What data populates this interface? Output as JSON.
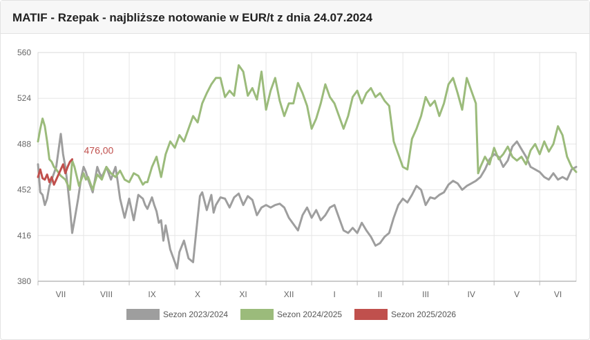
{
  "title": "MATIF - Rzepak - najbliższe notowanie w EUR/t z dnia 24.07.2024",
  "chart_data": {
    "type": "line",
    "title": "MATIF - Rzepak - najbliższe notowanie w EUR/t z dnia 24.07.2024",
    "xlabel": "",
    "ylabel": "",
    "ylim": [
      380,
      560
    ],
    "yticks": [
      380,
      416,
      452,
      488,
      524,
      560
    ],
    "months": [
      "VII",
      "VIII",
      "IX",
      "X",
      "XI",
      "XII",
      "I",
      "II",
      "III",
      "IV",
      "V",
      "VI"
    ],
    "x_unit": "month index (0 = start of VII, 12 = end of VI)",
    "xlim": [
      0,
      11.8
    ],
    "grid": true,
    "legend_position": "bottom",
    "annotation": {
      "text": "476,00",
      "x": 0.75,
      "y": 476
    },
    "series": [
      {
        "name": "Sezon 2023/2024",
        "color": "#9e9e9e",
        "x": [
          0,
          0.05,
          0.1,
          0.15,
          0.2,
          0.25,
          0.3,
          0.35,
          0.4,
          0.5,
          0.55,
          0.6,
          0.65,
          0.7,
          0.75,
          0.8,
          0.88,
          0.95,
          1.0,
          1.05,
          1.1,
          1.15,
          1.2,
          1.3,
          1.35,
          1.4,
          1.5,
          1.55,
          1.6,
          1.7,
          1.75,
          1.8,
          1.9,
          2.0,
          2.1,
          2.2,
          2.3,
          2.35,
          2.4,
          2.5,
          2.55,
          2.6,
          2.65,
          2.7,
          2.75,
          2.8,
          2.9,
          3.0,
          3.05,
          3.1,
          3.2,
          3.3,
          3.4,
          3.5,
          3.55,
          3.6,
          3.7,
          3.8,
          3.85,
          3.9,
          4.0,
          4.1,
          4.2,
          4.3,
          4.4,
          4.5,
          4.6,
          4.7,
          4.8,
          4.9,
          5.0,
          5.1,
          5.2,
          5.3,
          5.4,
          5.5,
          5.6,
          5.7,
          5.8,
          5.9,
          6.0,
          6.1,
          6.2,
          6.3,
          6.4,
          6.5,
          6.6,
          6.7,
          6.8,
          6.9,
          7.0,
          7.1,
          7.2,
          7.3,
          7.4,
          7.5,
          7.6,
          7.7,
          7.8,
          7.9,
          8.0,
          8.1,
          8.2,
          8.3,
          8.4,
          8.5,
          8.6,
          8.7,
          8.8,
          8.9,
          9.0,
          9.1,
          9.2,
          9.3,
          9.4,
          9.5,
          9.6,
          9.7,
          9.8,
          9.9,
          10.0,
          10.1,
          10.2,
          10.3,
          10.4,
          10.5,
          10.6,
          10.7,
          10.8,
          10.9,
          11.0,
          11.1,
          11.2,
          11.3,
          11.4,
          11.5,
          11.6,
          11.7,
          11.8
        ],
        "y": [
          472,
          450,
          448,
          440,
          445,
          455,
          460,
          465,
          470,
          496,
          480,
          470,
          455,
          438,
          418,
          428,
          445,
          462,
          470,
          466,
          460,
          455,
          450,
          470,
          465,
          462,
          470,
          465,
          460,
          470,
          458,
          445,
          430,
          445,
          428,
          448,
          445,
          440,
          437,
          446,
          440,
          435,
          426,
          428,
          412,
          424,
          405,
          395,
          390,
          403,
          412,
          398,
          395,
          430,
          447,
          450,
          436,
          448,
          434,
          440,
          446,
          445,
          438,
          446,
          449,
          440,
          447,
          444,
          432,
          438,
          440,
          438,
          440,
          441,
          438,
          430,
          425,
          420,
          432,
          438,
          430,
          436,
          428,
          432,
          438,
          440,
          430,
          420,
          418,
          422,
          418,
          426,
          420,
          415,
          408,
          410,
          415,
          418,
          430,
          440,
          445,
          442,
          448,
          455,
          452,
          440,
          446,
          445,
          448,
          450,
          456,
          459,
          457,
          452,
          455,
          457,
          459,
          462,
          468,
          476,
          480,
          478,
          470,
          475,
          486,
          490,
          484,
          478,
          470,
          468,
          466,
          462,
          460,
          465,
          460,
          462,
          460,
          468,
          470
        ]
      },
      {
        "name": "Sezon 2024/2025",
        "color": "#9bbb7b",
        "x": [
          0,
          0.05,
          0.1,
          0.15,
          0.2,
          0.25,
          0.3,
          0.35,
          0.4,
          0.5,
          0.6,
          0.65,
          0.7,
          0.75,
          0.8,
          0.9,
          1.0,
          1.05,
          1.1,
          1.2,
          1.3,
          1.4,
          1.5,
          1.6,
          1.7,
          1.8,
          1.9,
          2.0,
          2.1,
          2.2,
          2.3,
          2.35,
          2.4,
          2.5,
          2.6,
          2.7,
          2.8,
          2.9,
          3.0,
          3.1,
          3.2,
          3.3,
          3.4,
          3.5,
          3.6,
          3.7,
          3.8,
          3.9,
          4.0,
          4.1,
          4.2,
          4.3,
          4.4,
          4.5,
          4.6,
          4.7,
          4.8,
          4.9,
          5.0,
          5.1,
          5.2,
          5.3,
          5.4,
          5.5,
          5.6,
          5.7,
          5.8,
          5.9,
          6.0,
          6.1,
          6.2,
          6.3,
          6.4,
          6.5,
          6.6,
          6.7,
          6.8,
          6.9,
          7.0,
          7.1,
          7.2,
          7.3,
          7.4,
          7.5,
          7.6,
          7.7,
          7.8,
          7.9,
          8.0,
          8.1,
          8.2,
          8.3,
          8.4,
          8.5,
          8.6,
          8.7,
          8.8,
          8.9,
          9.0,
          9.1,
          9.2,
          9.3,
          9.4,
          9.5,
          9.6,
          9.65,
          9.7,
          9.8,
          9.9,
          10.0,
          10.1,
          10.2,
          10.3,
          10.4,
          10.5,
          10.6,
          10.7,
          10.8,
          10.9,
          11.0,
          11.1,
          11.2,
          11.3,
          11.4,
          11.5,
          11.6,
          11.7,
          11.8
        ],
        "y": [
          490,
          500,
          508,
          502,
          490,
          476,
          474,
          470,
          468,
          463,
          460,
          456,
          452,
          475,
          470,
          455,
          465,
          460,
          462,
          452,
          464,
          460,
          470,
          465,
          462,
          467,
          460,
          458,
          465,
          463,
          456,
          458,
          458,
          470,
          478,
          462,
          480,
          490,
          485,
          495,
          490,
          500,
          510,
          505,
          520,
          528,
          535,
          540,
          540,
          525,
          530,
          526,
          550,
          545,
          526,
          532,
          523,
          545,
          515,
          530,
          540,
          522,
          510,
          520,
          520,
          536,
          528,
          518,
          500,
          508,
          520,
          535,
          525,
          520,
          510,
          500,
          510,
          525,
          530,
          520,
          528,
          532,
          525,
          528,
          522,
          518,
          490,
          480,
          470,
          468,
          492,
          500,
          510,
          525,
          518,
          522,
          510,
          520,
          535,
          540,
          528,
          515,
          540,
          530,
          520,
          465,
          470,
          478,
          472,
          485,
          476,
          480,
          486,
          478,
          475,
          478,
          472,
          483,
          488,
          480,
          490,
          482,
          488,
          502,
          495,
          478,
          470,
          466
        ]
      },
      {
        "name": "Sezon 2025/2026",
        "color": "#c0504d",
        "x": [
          0,
          0.05,
          0.1,
          0.15,
          0.2,
          0.25,
          0.3,
          0.35,
          0.4,
          0.45,
          0.5,
          0.55,
          0.6,
          0.65,
          0.7,
          0.75
        ],
        "y": [
          462,
          468,
          461,
          460,
          464,
          458,
          462,
          456,
          460,
          464,
          468,
          472,
          465,
          470,
          474,
          476
        ]
      }
    ]
  }
}
